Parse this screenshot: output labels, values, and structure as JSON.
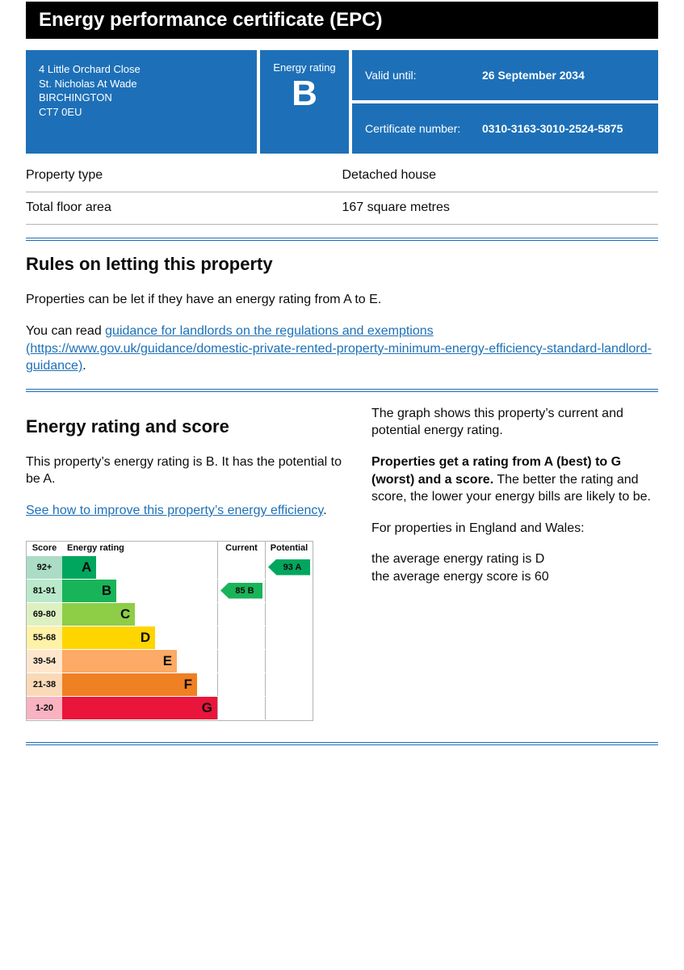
{
  "colors": {
    "accent": "#1d70b8",
    "header_bg": "#000000",
    "border_gray": "#b1b4b6"
  },
  "header": {
    "title": "Energy performance certificate (EPC)"
  },
  "summary": {
    "address_lines": [
      "4 Little Orchard Close",
      "St. Nicholas At Wade",
      "BIRCHINGTON",
      "CT7 0EU"
    ],
    "energy_rating_label": "Energy rating",
    "energy_rating": "B",
    "valid_until_label": "Valid until:",
    "valid_until": "26 September 2034",
    "certificate_number_label": "Certificate number:",
    "certificate_number": "0310-3163-3010-2524-5875"
  },
  "property_facts": [
    {
      "label": "Property type",
      "value": "Detached house"
    },
    {
      "label": "Total floor area",
      "value": "167 square metres"
    }
  ],
  "rules_section": {
    "heading": "Rules on letting this property",
    "paragraph1": "Properties can be let if they have an energy rating from A to E.",
    "paragraph2_prefix": "You can read ",
    "link_text": "guidance for landlords on the regulations and exemptions (https://www.gov.uk/guidance/domestic-private-rented-property-minimum-energy-efficiency-standard-landlord-guidance)",
    "paragraph2_suffix": "."
  },
  "rating_section": {
    "heading": "Energy rating and score",
    "intro": "This property’s energy rating is B. It has the potential to be A.",
    "improve_link_text": "See how to improve this property’s energy efficiency",
    "improve_link_suffix": ".",
    "right_para1": "The graph shows this property’s current and potential energy rating.",
    "right_para2_bold": "Properties get a rating from A (best) to G (worst) and a score.",
    "right_para2_rest": " The better the rating and score, the lower your energy bills are likely to be.",
    "right_para3": "For properties in England and Wales:",
    "average_rating_line": "the average energy rating is D",
    "average_score_line": "the average energy score is 60"
  },
  "chart_data": {
    "type": "bar",
    "subtype": "epc-rating-bands",
    "title": "Energy rating and score chart",
    "columns": {
      "score": "Score",
      "rating": "Energy rating",
      "current": "Current",
      "potential": "Potential"
    },
    "bands": [
      {
        "score": "92+",
        "letter": "A",
        "color": "#00a65e",
        "tint": "#aadcc6",
        "width_pct": 22
      },
      {
        "score": "81-91",
        "letter": "B",
        "color": "#19b459",
        "tint": "#b9e8ca",
        "width_pct": 35
      },
      {
        "score": "69-80",
        "letter": "C",
        "color": "#8dce46",
        "tint": "#ddf0c2",
        "width_pct": 47
      },
      {
        "score": "55-68",
        "letter": "D",
        "color": "#ffd500",
        "tint": "#fff1a6",
        "width_pct": 60
      },
      {
        "score": "39-54",
        "letter": "E",
        "color": "#fcaa65",
        "tint": "#fee6cd",
        "width_pct": 74
      },
      {
        "score": "21-38",
        "letter": "F",
        "color": "#ef8023",
        "tint": "#fad9b6",
        "width_pct": 87
      },
      {
        "score": "1-20",
        "letter": "G",
        "color": "#e9153b",
        "tint": "#f8b2c0",
        "width_pct": 100
      }
    ],
    "current": {
      "score": 85,
      "letter": "B",
      "color": "#19b459"
    },
    "potential": {
      "score": 93,
      "letter": "A",
      "color": "#00a65e"
    }
  }
}
